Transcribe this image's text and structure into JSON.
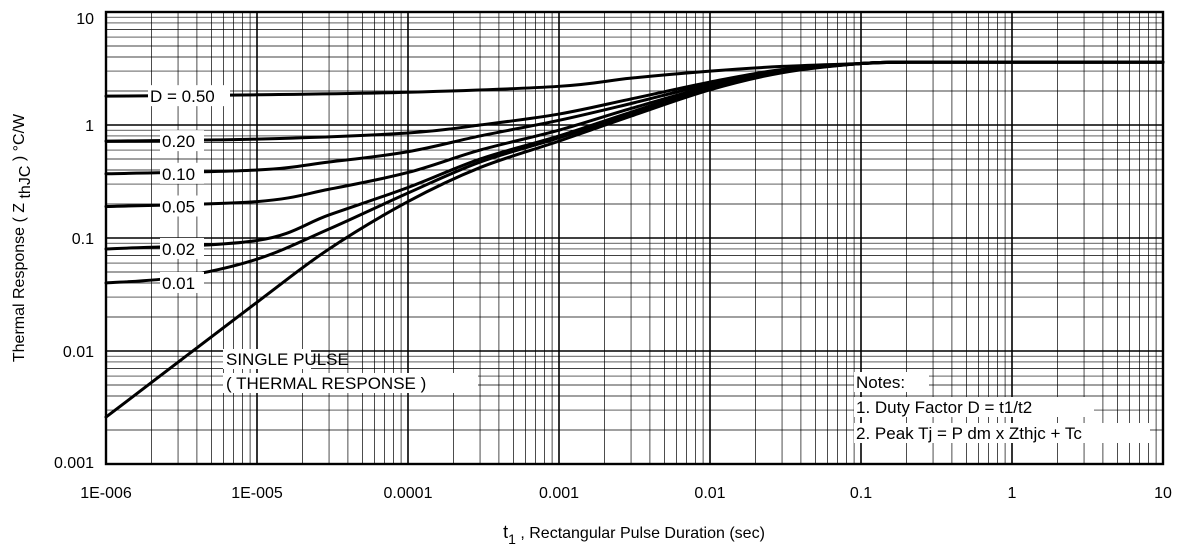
{
  "chart_data": {
    "type": "line",
    "xscale": "log",
    "yscale": "log",
    "xlim": [
      1e-06,
      10
    ],
    "ylim": [
      0.001,
      10
    ],
    "grid": true,
    "xlabel": "t",
    "xlabel_sub": "1",
    "xlabel_rest": ", Rectangular Pulse Duration (sec)",
    "ylabel": "Thermal Response ( Z",
    "ylabel_sub": "thJC",
    "ylabel_rest": ") °C/W",
    "x_ticks": [
      {
        "value": 1e-06,
        "label": "1E-006"
      },
      {
        "value": 1e-05,
        "label": "1E-005"
      },
      {
        "value": 0.0001,
        "label": "0.0001"
      },
      {
        "value": 0.001,
        "label": "0.001"
      },
      {
        "value": 0.01,
        "label": "0.01"
      },
      {
        "value": 0.1,
        "label": "0.1"
      },
      {
        "value": 1,
        "label": "1"
      },
      {
        "value": 10,
        "label": "10"
      }
    ],
    "y_ticks": [
      {
        "value": 0.001,
        "label": "0.001"
      },
      {
        "value": 0.01,
        "label": "0.01"
      },
      {
        "value": 0.1,
        "label": "0.1"
      },
      {
        "value": 1,
        "label": "1"
      },
      {
        "value": 10,
        "label": "10"
      }
    ],
    "series": [
      {
        "name": "D = 0.50",
        "label": "D = 0.50",
        "x": [
          1e-06,
          1e-05,
          0.0001,
          0.001,
          0.003,
          0.01,
          0.03,
          0.1,
          0.2,
          1,
          10
        ],
        "y": [
          1.8,
          1.85,
          1.95,
          2.2,
          2.6,
          3.0,
          3.3,
          3.5,
          3.6,
          3.6,
          3.6
        ]
      },
      {
        "name": "0.20",
        "label": "0.20",
        "x": [
          1e-06,
          1e-05,
          0.0001,
          0.0003,
          0.001,
          0.003,
          0.01,
          0.03,
          0.1,
          0.2,
          1,
          10
        ],
        "y": [
          0.72,
          0.75,
          0.85,
          1.0,
          1.25,
          1.7,
          2.4,
          3.1,
          3.5,
          3.6,
          3.6,
          3.6
        ]
      },
      {
        "name": "0.10",
        "label": "0.10",
        "x": [
          1e-06,
          1e-05,
          3e-05,
          0.0001,
          0.0003,
          0.001,
          0.003,
          0.01,
          0.03,
          0.1,
          0.2,
          1,
          10
        ],
        "y": [
          0.37,
          0.4,
          0.47,
          0.58,
          0.8,
          1.1,
          1.55,
          2.3,
          3.0,
          3.5,
          3.6,
          3.6,
          3.6
        ]
      },
      {
        "name": "0.05",
        "label": "0.05",
        "x": [
          1e-06,
          1e-05,
          3e-05,
          0.0001,
          0.0003,
          0.001,
          0.003,
          0.01,
          0.03,
          0.1,
          0.2,
          1,
          10
        ],
        "y": [
          0.19,
          0.21,
          0.27,
          0.38,
          0.6,
          0.9,
          1.4,
          2.2,
          3.0,
          3.5,
          3.6,
          3.6,
          3.6
        ]
      },
      {
        "name": "0.02",
        "label": "0.02",
        "x": [
          1e-06,
          1e-05,
          3e-05,
          0.0001,
          0.0003,
          0.001,
          0.003,
          0.01,
          0.03,
          0.1,
          0.2,
          1,
          10
        ],
        "y": [
          0.08,
          0.095,
          0.16,
          0.28,
          0.5,
          0.8,
          1.3,
          2.15,
          2.95,
          3.5,
          3.6,
          3.6,
          3.6
        ]
      },
      {
        "name": "0.01",
        "label": "0.01",
        "x": [
          1e-06,
          3e-06,
          1e-05,
          3e-05,
          0.0001,
          0.0003,
          0.001,
          0.003,
          0.01,
          0.03,
          0.1,
          0.2,
          1,
          10
        ],
        "y": [
          0.04,
          0.045,
          0.065,
          0.12,
          0.25,
          0.47,
          0.77,
          1.25,
          2.1,
          2.95,
          3.5,
          3.6,
          3.6,
          3.6
        ]
      },
      {
        "name": "SINGLE PULSE",
        "label": "",
        "x": [
          1e-06,
          1e-05,
          3e-05,
          0.0001,
          0.0003,
          0.001,
          0.003,
          0.01,
          0.03,
          0.1,
          0.2,
          1,
          10
        ],
        "y": [
          0.0026,
          0.027,
          0.08,
          0.21,
          0.42,
          0.72,
          1.2,
          2.05,
          2.9,
          3.5,
          3.6,
          3.6,
          3.6
        ]
      }
    ],
    "annotations": {
      "single_pulse": [
        "SINGLE PULSE",
        "( THERMAL RESPONSE )"
      ],
      "notes": [
        "Notes:",
        "1. Duty Factor D = t1/t2",
        "2. Peak Tj = P dm x Zthjc + Tc"
      ]
    }
  }
}
